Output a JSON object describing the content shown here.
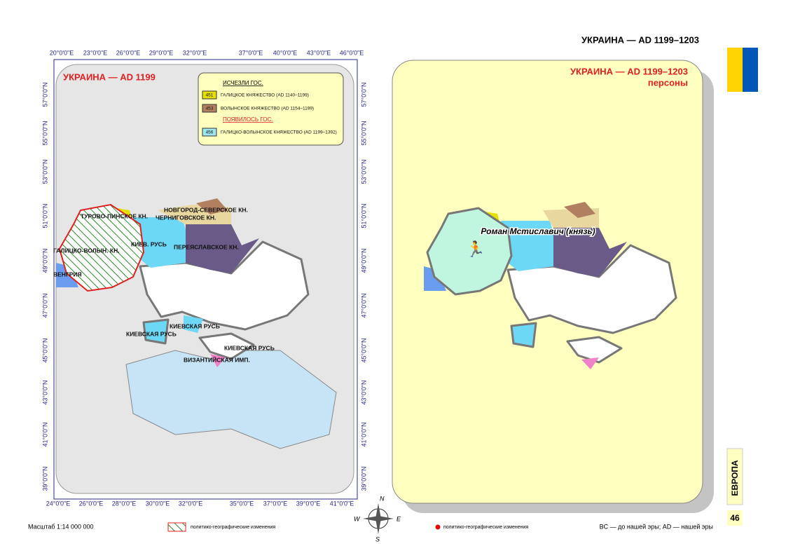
{
  "header": {
    "title": "УКРАИНА — AD 1199–1203"
  },
  "left_map": {
    "title": "УКРАИНА — AD 1199",
    "top_ticks": [
      "20°0'0\"E",
      "23°0'0\"E",
      "26°0'0\"E",
      "29°0'0\"E",
      "32°0'0\"E",
      "37°0'0\"E",
      "40°0'0\"E",
      "43°0'0\"E",
      "46°0'0\"E"
    ],
    "bottom_ticks": [
      "24°0'0\"E",
      "26°0'0\"E",
      "28°0'0\"E",
      "30°0'0\"E",
      "32°0'0\"E",
      "35°0'0\"E",
      "37°0'0\"E",
      "39°0'0\"E",
      "41°0'0\"E"
    ],
    "lat_ticks": [
      "57°0'0\"N",
      "55°0'0\"N",
      "53°0'0\"N",
      "51°0'0\"N",
      "49°0'0\"N",
      "47°0'0\"N",
      "45°0'0\"N",
      "43°0'0\"N",
      "41°0'0\"N",
      "39°0'0\"N"
    ],
    "legend": {
      "disappeared": "ИСЧЕЗЛИ ГОС.",
      "appeared": "ПОЯВИЛОСЬ ГОС.",
      "items": [
        {
          "code": "451",
          "label": "ГАЛИЦКОЕ КНЯЖЕСТВО (AD 1140–1199)"
        },
        {
          "code": "453",
          "label": "ВОЛЫНСКОЕ КНЯЖЕСТВО (AD 1154–1199)"
        },
        {
          "code": "456",
          "label": "ГАЛИЦКО-ВОЛЫНСКОЕ КНЯЖЕСТВО (AD 1199–1392)"
        }
      ]
    },
    "regions": [
      "ТУРОВО-ПИНСКОЕ КН.",
      "НОВГОРОД-СЕВЕРСКОЕ КН.",
      "ЧЕРНИГОВСКОЕ КН.",
      "КИЕВ. РУСЬ",
      "ПЕРЕЯСЛАВСКОЕ КН.",
      "ГАЛИЦКО-ВОЛЫН. КН.",
      "ВЕНГРИЯ",
      "КИЕВСКАЯ РУСЬ",
      "КИЕВСКАЯ РУСЬ",
      "КИЕВСКАЯ РУСЬ",
      "ВИЗАНТИЙСКАЯ ИМП."
    ]
  },
  "right_map": {
    "title": "УКРАИНА — AD 1199–1203",
    "subtitle": "персоны",
    "person": "Роман Мстиславич (князь)"
  },
  "footer": {
    "scale": "Масштаб 1:14 000 000",
    "hatch_legend": "политико-географические изменения",
    "dot_legend": "политико-географические изменения",
    "era_note": "BC — до нашей эры; AD — нашей эры",
    "compass": [
      "N",
      "W",
      "E",
      "S"
    ]
  },
  "side": {
    "region": "ЕВРОПА",
    "page": "46"
  }
}
